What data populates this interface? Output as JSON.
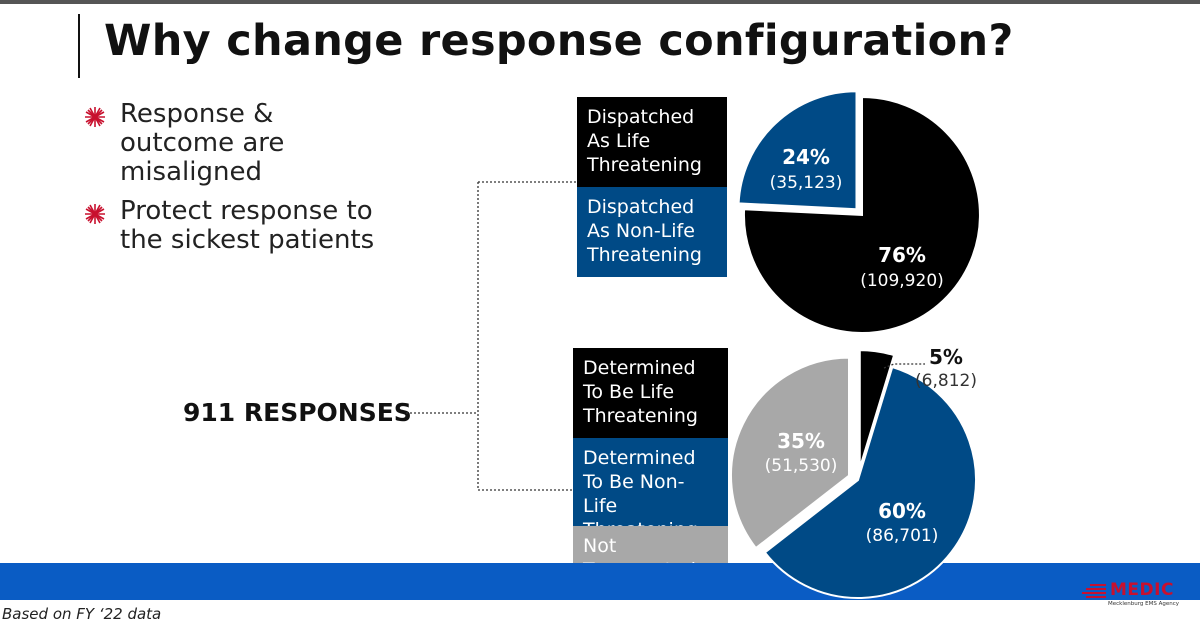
{
  "title": "Why change response configuration?",
  "bullets": [
    {
      "text": "Response & outcome are misaligned",
      "icon": "asterisk-bullet-icon"
    },
    {
      "text": "Protect response to the sickest patients",
      "icon": "asterisk-bullet-icon"
    }
  ],
  "root_label": "911 RESPONSES",
  "footnote": "Based on FY ‘22 data",
  "logo": {
    "text": "MEDIC",
    "subtext": "Mecklenburg EMS Agency"
  },
  "colors": {
    "black": "#000000",
    "blue": "#004a86",
    "gray": "#a8a8a8",
    "band": "#0a5cc4",
    "bullet": "#c8102e"
  },
  "chart_data": [
    {
      "type": "pie",
      "legend": [
        {
          "label": "Dispatched As Life Threatening",
          "color": "#000000"
        },
        {
          "label": "Dispatched As Non-Life Threatening",
          "color": "#004a86"
        }
      ],
      "slices": [
        {
          "label": "Dispatched As Non-Life Threatening",
          "value": 35123,
          "percent": "24%",
          "count": "(35,123)",
          "color": "#004a86",
          "exploded": true
        },
        {
          "label": "Dispatched As Life Threatening",
          "value": 109920,
          "percent": "76%",
          "count": "(109,920)",
          "color": "#000000",
          "exploded": false
        }
      ]
    },
    {
      "type": "pie",
      "legend": [
        {
          "label": "Determined To Be Life Threatening",
          "color": "#000000"
        },
        {
          "label": "Determined To Be Non-Life Threatening",
          "color": "#004a86"
        },
        {
          "label": "Not Transported",
          "color": "#a8a8a8"
        }
      ],
      "slices": [
        {
          "label": "Determined To Be Life Threatening",
          "value": 6812,
          "percent": "5%",
          "count": "(6,812)",
          "color": "#000000",
          "exploded": true
        },
        {
          "label": "Determined To Be Non-Life Threatening",
          "value": 86701,
          "percent": "60%",
          "count": "(86,701)",
          "color": "#004a86",
          "exploded": false
        },
        {
          "label": "Not Transported",
          "value": 51530,
          "percent": "35%",
          "count": "(51,530)",
          "color": "#a8a8a8",
          "exploded": true
        }
      ]
    }
  ]
}
